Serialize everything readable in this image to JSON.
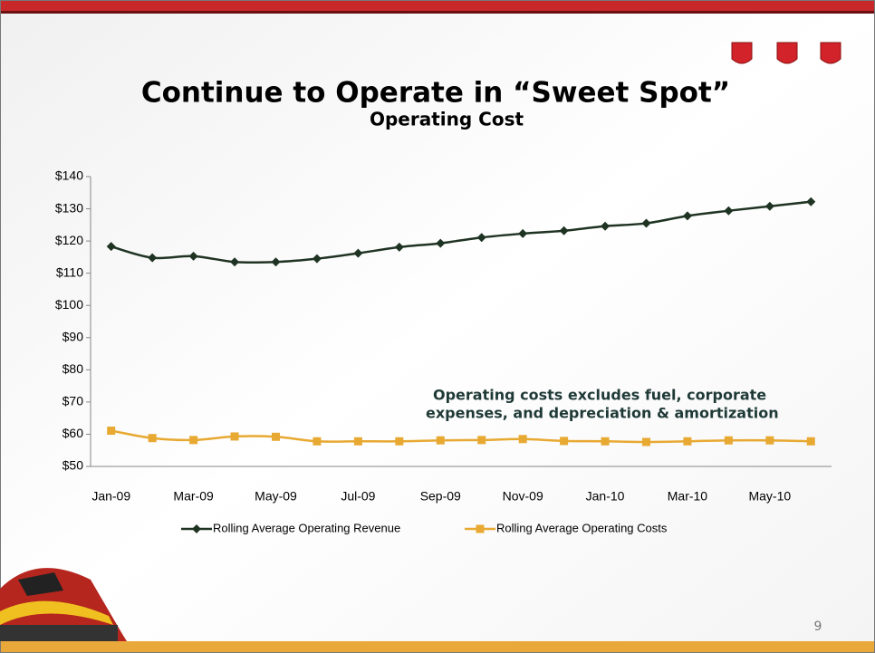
{
  "chart_data": {
    "type": "line",
    "title": "Continue to Operate in “Sweet Spot”",
    "subtitle": "Operating Cost",
    "annotation": [
      "Operating costs excludes fuel, corporate",
      "expenses, and depreciation & amortization"
    ],
    "page_number": "9",
    "categories": [
      "Jan-09",
      null,
      "Mar-09",
      null,
      "May-09",
      null,
      "Jul-09",
      null,
      "Sep-09",
      null,
      "Nov-09",
      null,
      "Jan-10",
      null,
      "Mar-10",
      null,
      "May-10",
      null
    ],
    "series": [
      {
        "name": "Rolling Average Operating Revenue",
        "color": "#1f3323",
        "marker": "diamond",
        "values": [
          118.3,
          114.8,
          115.3,
          113.5,
          113.5,
          114.5,
          116.2,
          118.1,
          119.3,
          121.1,
          122.3,
          123.2,
          124.6,
          125.5,
          127.8,
          129.4,
          130.8,
          132.2
        ]
      },
      {
        "name": "Rolling Average Operating Costs",
        "color": "#e8a932",
        "marker": "square",
        "values": [
          61.1,
          58.8,
          58.2,
          59.3,
          59.2,
          57.8,
          57.8,
          57.8,
          58.1,
          58.2,
          58.5,
          57.9,
          57.8,
          57.6,
          57.8,
          58.1,
          58.1,
          57.8
        ]
      }
    ],
    "ylim": [
      50,
      140
    ],
    "yticks": [
      {
        "value": 50,
        "label": "$50"
      },
      {
        "value": 60,
        "label": "$60"
      },
      {
        "value": 70,
        "label": "$70"
      },
      {
        "value": 80,
        "label": "$80"
      },
      {
        "value": 90,
        "label": "$90"
      },
      {
        "value": 100,
        "label": "$100"
      },
      {
        "value": 110,
        "label": "$110"
      },
      {
        "value": 120,
        "label": "$120"
      },
      {
        "value": 130,
        "label": "$130"
      },
      {
        "value": 140,
        "label": "$140"
      }
    ],
    "legend": "bottom"
  }
}
